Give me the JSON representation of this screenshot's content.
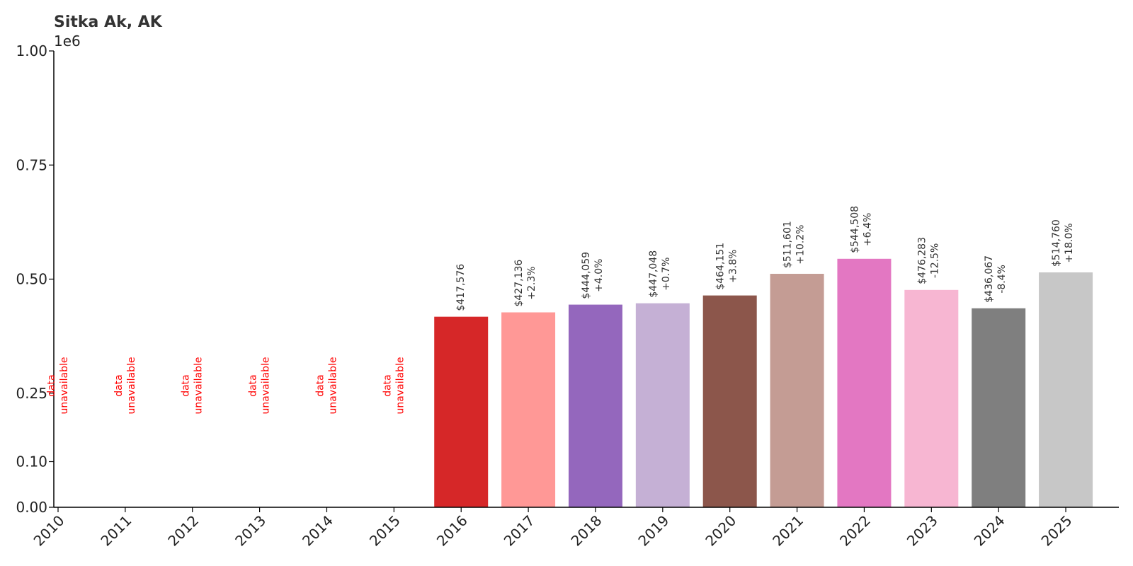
{
  "chart_data": {
    "type": "bar",
    "title": "Sitka Ak, AK",
    "y_offset_label": "1e6",
    "xlabel": "",
    "ylabel": "",
    "ylim": [
      0,
      1000000
    ],
    "y_ticks": [
      0,
      100000,
      250000,
      500000,
      750000,
      1000000
    ],
    "y_tick_labels": [
      "0.00",
      "0.10",
      "0.25",
      "0.50",
      "0.75",
      "1.00"
    ],
    "grid": false,
    "unavailable_label": [
      "data",
      "unavailable"
    ],
    "categories": [
      "2010",
      "2011",
      "2012",
      "2013",
      "2014",
      "2015",
      "2016",
      "2017",
      "2018",
      "2019",
      "2020",
      "2021",
      "2022",
      "2023",
      "2024",
      "2025"
    ],
    "values": [
      null,
      null,
      null,
      null,
      null,
      null,
      417576,
      427136,
      444059,
      447048,
      464151,
      511601,
      544508,
      476283,
      436067,
      514760
    ],
    "value_labels": [
      "",
      "",
      "",
      "",
      "",
      "",
      "$417,576",
      "$427,136",
      "$444,059",
      "$447,048",
      "$464,151",
      "$511,601",
      "$544,508",
      "$476,283",
      "$436,067",
      "$514,760"
    ],
    "change_labels": [
      "",
      "",
      "",
      "",
      "",
      "",
      "",
      "+2.3%",
      "+4.0%",
      "+0.7%",
      "+3.8%",
      "+10.2%",
      "+6.4%",
      "-12.5%",
      "-8.4%",
      "+18.0%"
    ],
    "colors": [
      "#d62728",
      "#d62728",
      "#d62728",
      "#d62728",
      "#d62728",
      "#d62728",
      "#d62728",
      "#ff9896",
      "#9467bd",
      "#c5b0d5",
      "#8c564b",
      "#c49c94",
      "#e377c2",
      "#f7b6d2",
      "#7f7f7f",
      "#c7c7c7"
    ],
    "unavailable_color": "#ff0000"
  }
}
